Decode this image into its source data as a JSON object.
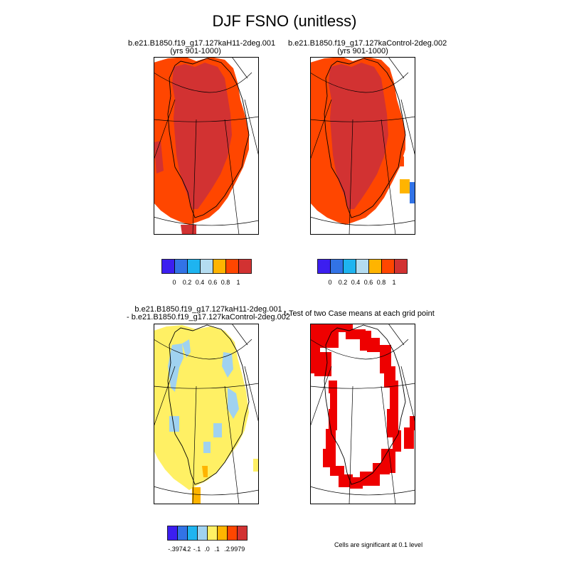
{
  "title": "DJF FSNO (unitless)",
  "panels": [
    {
      "id": "case1",
      "line1": "b.e21.B1850.f19_g17.127kaH11-2deg.001",
      "line2": "(yrs 901-1000)"
    },
    {
      "id": "case2",
      "line1": "b.e21.B1850.f19_g17.127kaControl-2deg.002",
      "line2": "(yrs 901-1000)"
    },
    {
      "id": "diff",
      "line1": "b.e21.B1850.f19_g17.127kaH11-2deg.001",
      "line2": "- b.e21.B1850.f19_g17.127kaControl-2deg.002"
    },
    {
      "id": "ttest",
      "line1": "t-Test of two Case means at each grid point",
      "line2": ""
    }
  ],
  "colorbars": {
    "case": {
      "colors": [
        "#3c1ef0",
        "#3273e6",
        "#1eb4f0",
        "#b4dcf0",
        "#ffb400",
        "#ff4600",
        "#d23232"
      ],
      "labels": [
        "0",
        "0.2",
        "0.4",
        "0.6",
        "0.8",
        "1"
      ]
    },
    "diff": {
      "colors": [
        "#3c1ef0",
        "#3273e6",
        "#1eb4f0",
        "#a0d2f0",
        "#fff064",
        "#ffb400",
        "#ff4600",
        "#d23232"
      ],
      "labels": [
        "-.3974",
        "-.2",
        "-.1",
        ".0",
        ".1",
        ".2",
        ".9979"
      ]
    }
  },
  "note": "Cells are significant at 0.1 level",
  "chart_data": [
    {
      "type": "heatmap",
      "panel": "case1",
      "title": "b.e21.B1850.f19_g17.127kaH11-2deg.001 (yrs 901-1000)",
      "levels": [
        0,
        0.2,
        0.4,
        0.6,
        0.8,
        1
      ],
      "dominant_values": {
        "interior": "> 1",
        "margin": "0.8-1"
      }
    },
    {
      "type": "heatmap",
      "panel": "case2",
      "title": "b.e21.B1850.f19_g17.127kaControl-2deg.002 (yrs 901-1000)",
      "levels": [
        0,
        0.2,
        0.4,
        0.6,
        0.8,
        1
      ],
      "dominant_values": {
        "interior": "> 1",
        "margin": "0.8-1"
      }
    },
    {
      "type": "heatmap",
      "panel": "diff",
      "title": "b.e21.B1850.f19_g17.127kaH11-2deg.001 - b.e21.B1850.f19_g17.127kaControl-2deg.002",
      "levels": [
        -0.3974,
        -0.2,
        -0.1,
        0.0,
        0.1,
        0.2,
        0.9979
      ],
      "dominant_values": {
        "most": ".0 to .1",
        "west_margin": "-.1 to .0",
        "south_tip": ".1 to .2"
      }
    },
    {
      "type": "heatmap",
      "panel": "ttest",
      "title": "t-Test of two Case means at each grid point",
      "significance_level": 0.1
    }
  ]
}
